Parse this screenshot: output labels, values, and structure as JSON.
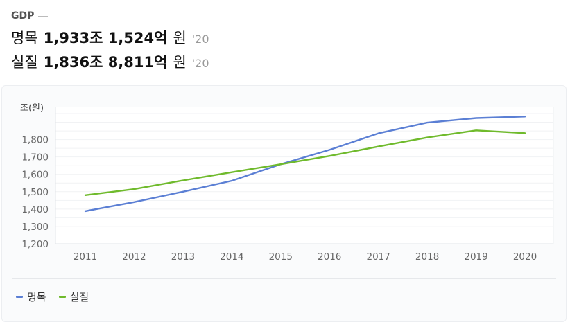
{
  "header": {
    "title": "GDP",
    "nominal": {
      "label": "명목",
      "value": "1,933조 1,524억",
      "unit": "원",
      "year": "'20"
    },
    "real": {
      "label": "실질",
      "value": "1,836조 8,811억",
      "unit": "원",
      "year": "'20"
    }
  },
  "colors": {
    "nominal": "#5b7fd4",
    "real": "#6fba2c"
  },
  "chart_data": {
    "type": "line",
    "ylabel": "조(원)",
    "x": [
      "2011",
      "2012",
      "2013",
      "2014",
      "2015",
      "2016",
      "2017",
      "2018",
      "2019",
      "2020"
    ],
    "yticks": [
      "1,200",
      "1,300",
      "1,400",
      "1,500",
      "1,600",
      "1,700",
      "1,800"
    ],
    "ylim": [
      1200,
      1990
    ],
    "grid": true,
    "legend_position": "bottom-left",
    "series": [
      {
        "name": "명목",
        "values": [
          1388,
          1440,
          1500,
          1563,
          1658,
          1741,
          1836,
          1898,
          1924,
          1933
        ]
      },
      {
        "name": "실질",
        "values": [
          1480,
          1515,
          1565,
          1612,
          1658,
          1706,
          1760,
          1812,
          1853,
          1837
        ]
      }
    ]
  }
}
